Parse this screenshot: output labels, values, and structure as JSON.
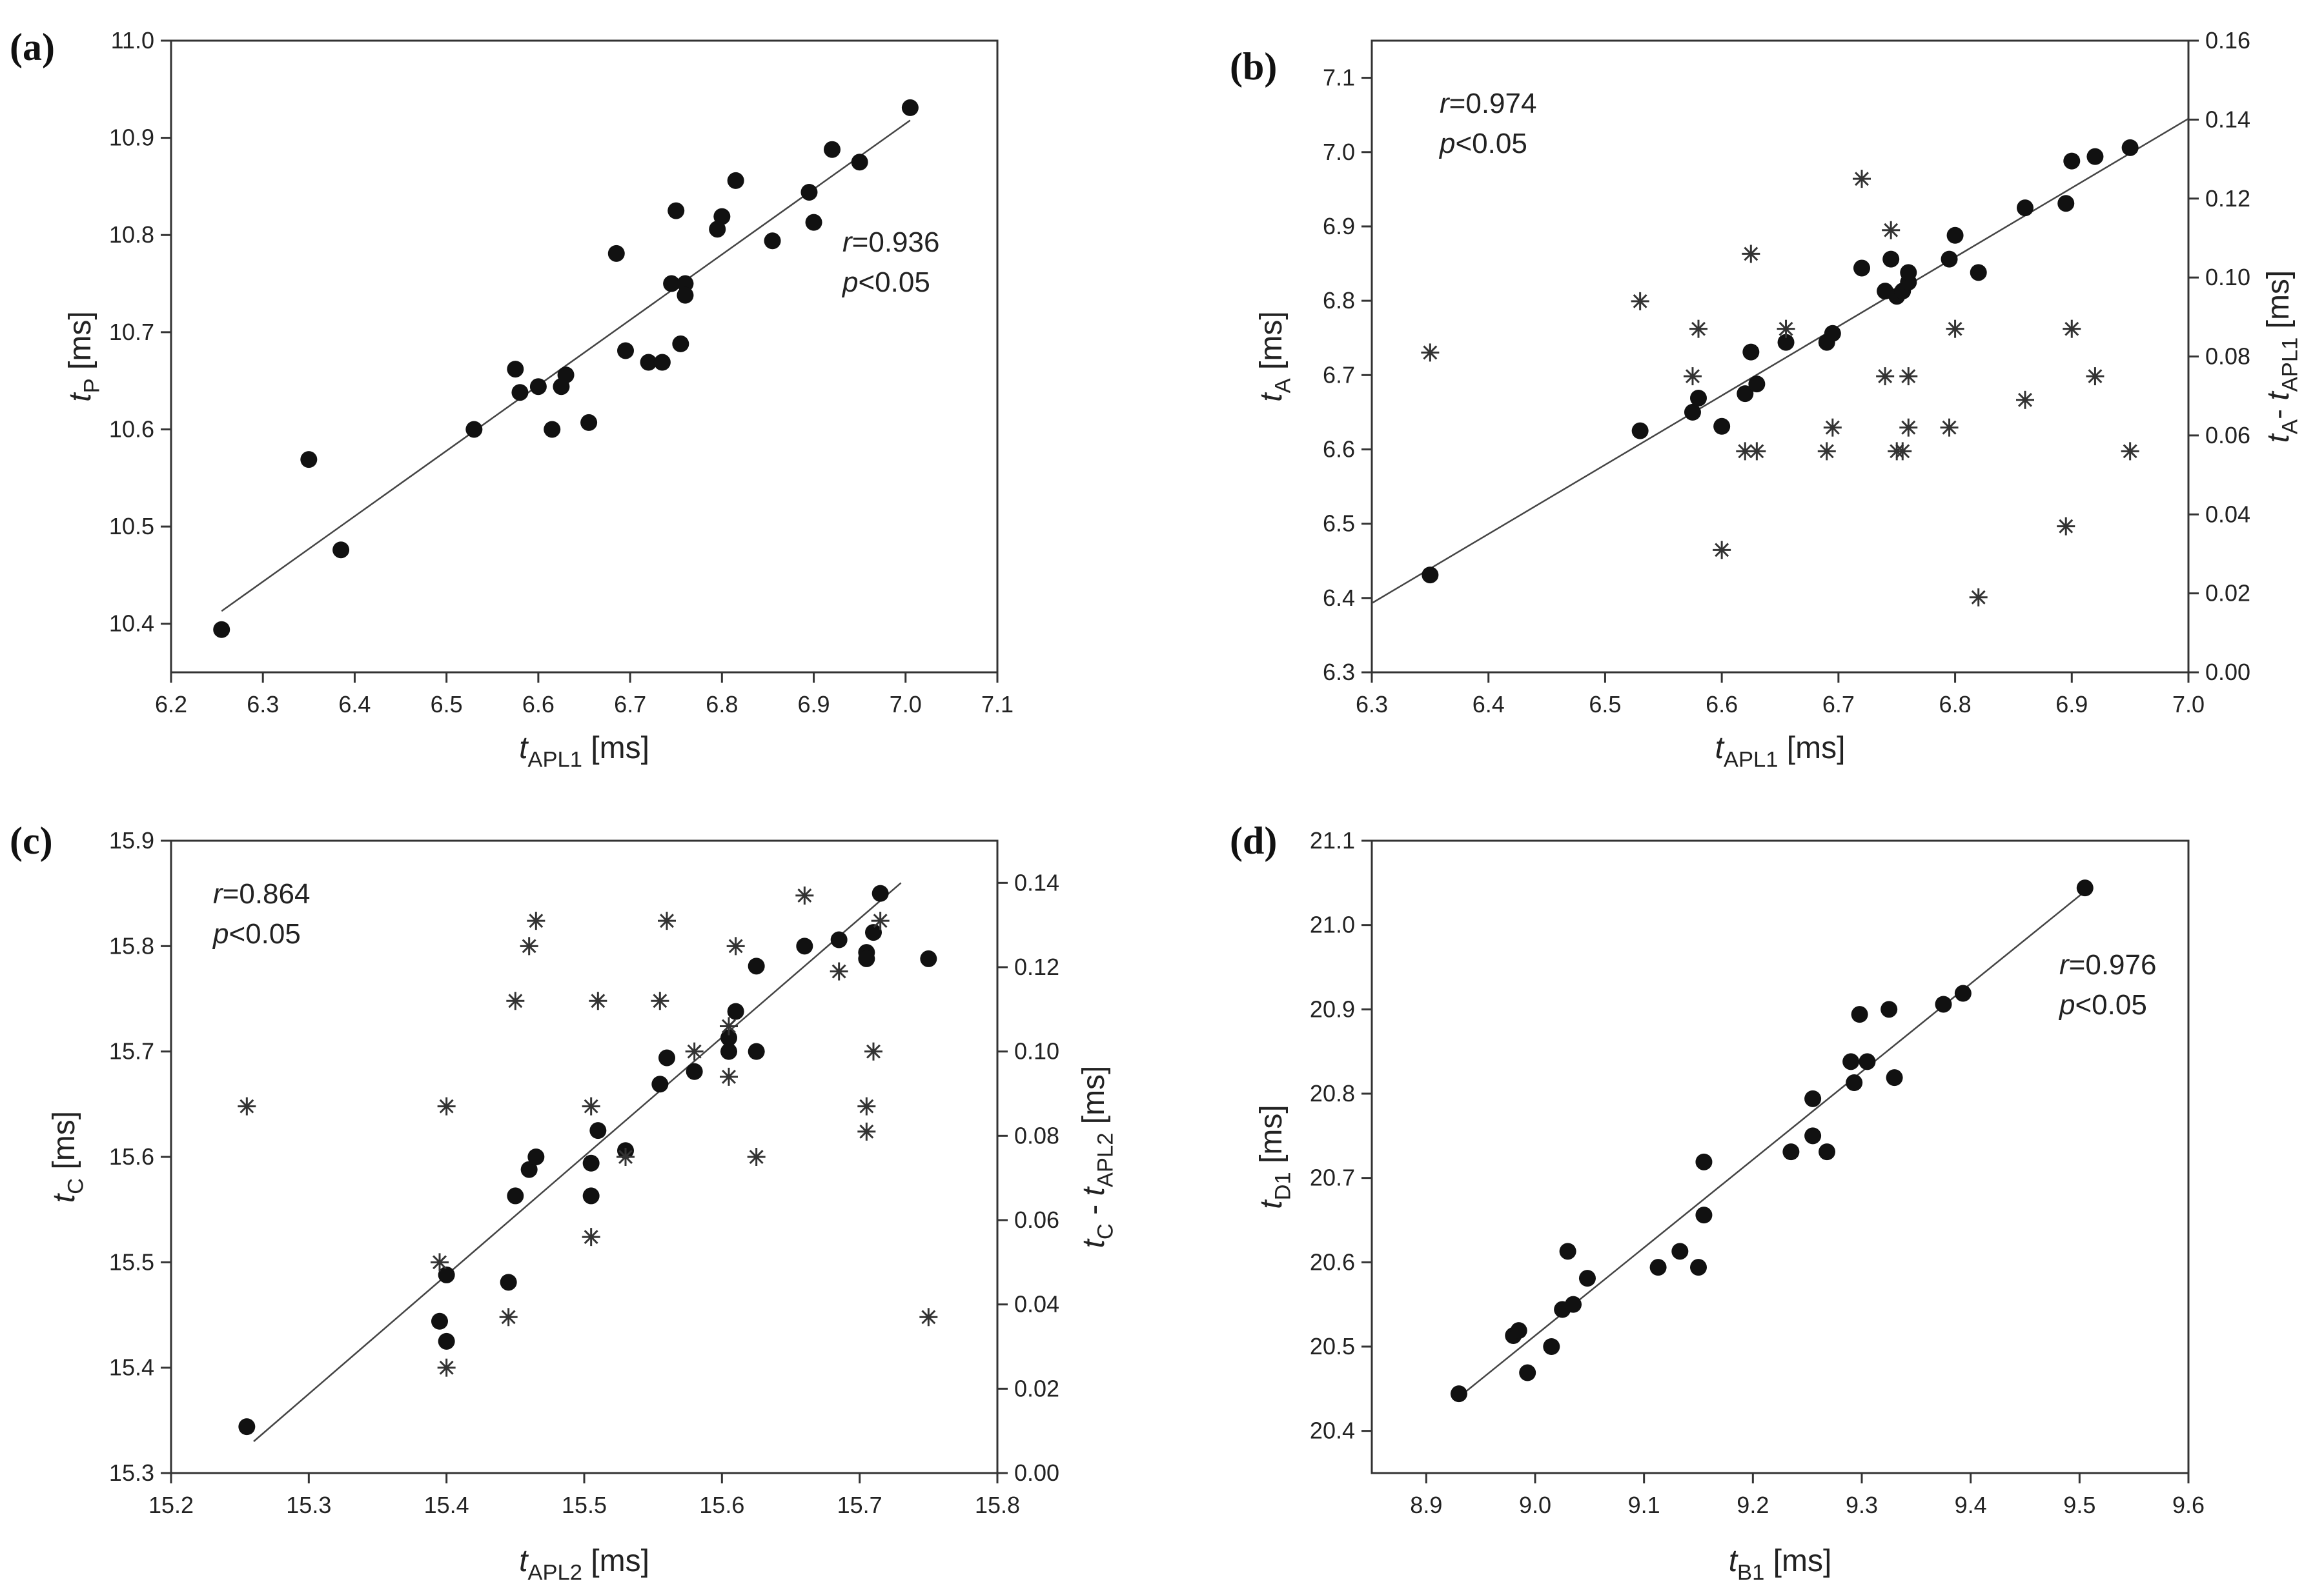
{
  "chart_data": [
    {
      "panel": "(a)",
      "type": "scatter",
      "xlabel": "t_APL1 [ms]",
      "ylabel": "t_P [ms]",
      "xlim": [
        6.2,
        7.1
      ],
      "ylim": [
        10.35,
        11.0
      ],
      "xticks": [
        "6.2",
        "6.3",
        "6.4",
        "6.5",
        "6.6",
        "6.7",
        "6.8",
        "6.9",
        "7.0",
        "7.1"
      ],
      "yticks": [
        "10.4",
        "10.5",
        "10.6",
        "10.7",
        "10.8",
        "10.9",
        "11.0"
      ],
      "annotation": [
        "r=0.936",
        "p<0.05"
      ],
      "annotation_pos": "right",
      "fit_line": {
        "x0": 6.255,
        "y0": 10.413,
        "x1": 7.005,
        "y1": 10.918
      },
      "series": [
        {
          "name": "points",
          "marker": "dot",
          "axis": "left",
          "points": [
            [
              6.255,
              10.394
            ],
            [
              6.35,
              10.569
            ],
            [
              6.385,
              10.476
            ],
            [
              6.53,
              10.6
            ],
            [
              6.575,
              10.662
            ],
            [
              6.58,
              10.638
            ],
            [
              6.6,
              10.644
            ],
            [
              6.615,
              10.6
            ],
            [
              6.625,
              10.644
            ],
            [
              6.63,
              10.656
            ],
            [
              6.655,
              10.607
            ],
            [
              6.685,
              10.781
            ],
            [
              6.695,
              10.681
            ],
            [
              6.72,
              10.669
            ],
            [
              6.735,
              10.669
            ],
            [
              6.745,
              10.75
            ],
            [
              6.75,
              10.825
            ],
            [
              6.755,
              10.688
            ],
            [
              6.76,
              10.75
            ],
            [
              6.76,
              10.738
            ],
            [
              6.795,
              10.806
            ],
            [
              6.8,
              10.819
            ],
            [
              6.815,
              10.856
            ],
            [
              6.855,
              10.794
            ],
            [
              6.895,
              10.844
            ],
            [
              6.9,
              10.813
            ],
            [
              6.92,
              10.888
            ],
            [
              6.95,
              10.875
            ],
            [
              7.005,
              10.931
            ]
          ]
        }
      ]
    },
    {
      "panel": "(b)",
      "type": "scatter",
      "xlabel": "t_APL1 [ms]",
      "ylabel": "t_A [ms]",
      "ylabel_right": "t_A- t_APL1 [ms]",
      "xlim": [
        6.3,
        7.0
      ],
      "ylim": [
        6.3,
        7.15
      ],
      "ylim_right": [
        0.0,
        0.16
      ],
      "xticks": [
        "6.3",
        "6.4",
        "6.5",
        "6.6",
        "6.7",
        "6.8",
        "6.9",
        "7.0"
      ],
      "yticks": [
        "6.3",
        "6.4",
        "6.5",
        "6.6",
        "6.7",
        "6.8",
        "6.9",
        "7.0",
        "7.1"
      ],
      "yticks_right": [
        "0.00",
        "0.02",
        "0.04",
        "0.06",
        "0.08",
        "0.10",
        "0.12",
        "0.14",
        "0.16"
      ],
      "annotation": [
        "r=0.974",
        "p<0.05"
      ],
      "annotation_pos": "left",
      "fit_line": {
        "x0": 6.3,
        "y0": 6.393,
        "x1": 7.0,
        "y1": 7.045
      },
      "series": [
        {
          "name": "t_A",
          "marker": "dot",
          "axis": "left",
          "points": [
            [
              6.35,
              6.431
            ],
            [
              6.53,
              6.625
            ],
            [
              6.575,
              6.65
            ],
            [
              6.58,
              6.669
            ],
            [
              6.6,
              6.631
            ],
            [
              6.62,
              6.675
            ],
            [
              6.625,
              6.731
            ],
            [
              6.63,
              6.688
            ],
            [
              6.655,
              6.744
            ],
            [
              6.69,
              6.744
            ],
            [
              6.695,
              6.756
            ],
            [
              6.72,
              6.844
            ],
            [
              6.74,
              6.813
            ],
            [
              6.745,
              6.856
            ],
            [
              6.75,
              6.806
            ],
            [
              6.755,
              6.813
            ],
            [
              6.76,
              6.825
            ],
            [
              6.76,
              6.838
            ],
            [
              6.795,
              6.856
            ],
            [
              6.8,
              6.888
            ],
            [
              6.82,
              6.838
            ],
            [
              6.86,
              6.925
            ],
            [
              6.895,
              6.931
            ],
            [
              6.9,
              6.988
            ],
            [
              6.92,
              6.994
            ],
            [
              6.95,
              7.006
            ]
          ]
        },
        {
          "name": "t_A - t_APL1",
          "marker": "star",
          "axis": "right",
          "points": [
            [
              6.35,
              0.081
            ],
            [
              6.53,
              0.094
            ],
            [
              6.575,
              0.075
            ],
            [
              6.58,
              0.087
            ],
            [
              6.6,
              0.031
            ],
            [
              6.62,
              0.056
            ],
            [
              6.625,
              0.106
            ],
            [
              6.63,
              0.056
            ],
            [
              6.655,
              0.087
            ],
            [
              6.69,
              0.056
            ],
            [
              6.695,
              0.062
            ],
            [
              6.72,
              0.125
            ],
            [
              6.74,
              0.075
            ],
            [
              6.745,
              0.112
            ],
            [
              6.75,
              0.056
            ],
            [
              6.755,
              0.056
            ],
            [
              6.76,
              0.075
            ],
            [
              6.76,
              0.062
            ],
            [
              6.795,
              0.062
            ],
            [
              6.8,
              0.087
            ],
            [
              6.82,
              0.019
            ],
            [
              6.86,
              0.069
            ],
            [
              6.895,
              0.037
            ],
            [
              6.9,
              0.087
            ],
            [
              6.92,
              0.075
            ],
            [
              6.95,
              0.056
            ]
          ]
        }
      ]
    },
    {
      "panel": "(c)",
      "type": "scatter",
      "xlabel": "t_APL2 [ms]",
      "ylabel": "t_C [ms]",
      "ylabel_right": "t_C - t_APL2 [ms]",
      "xlim": [
        15.2,
        15.8
      ],
      "ylim": [
        15.3,
        15.9
      ],
      "ylim_right": [
        0.0,
        0.15
      ],
      "xticks": [
        "15.2",
        "15.3",
        "15.4",
        "15.5",
        "15.6",
        "15.7",
        "15.8"
      ],
      "yticks": [
        "15.3",
        "15.4",
        "15.5",
        "15.6",
        "15.7",
        "15.8",
        "15.9"
      ],
      "yticks_right": [
        "0.00",
        "0.02",
        "0.04",
        "0.06",
        "0.08",
        "0.10",
        "0.12",
        "0.14"
      ],
      "annotation": [
        "r=0.864",
        "p<0.05"
      ],
      "annotation_pos": "left",
      "fit_line": {
        "x0": 15.26,
        "y0": 15.33,
        "x1": 15.73,
        "y1": 15.86
      },
      "series": [
        {
          "name": "t_C",
          "marker": "dot",
          "axis": "left",
          "points": [
            [
              15.255,
              15.344
            ],
            [
              15.395,
              15.444
            ],
            [
              15.4,
              15.425
            ],
            [
              15.4,
              15.488
            ],
            [
              15.445,
              15.481
            ],
            [
              15.45,
              15.563
            ],
            [
              15.46,
              15.588
            ],
            [
              15.465,
              15.6
            ],
            [
              15.505,
              15.594
            ],
            [
              15.505,
              15.563
            ],
            [
              15.51,
              15.625
            ],
            [
              15.53,
              15.606
            ],
            [
              15.555,
              15.669
            ],
            [
              15.56,
              15.694
            ],
            [
              15.58,
              15.681
            ],
            [
              15.605,
              15.713
            ],
            [
              15.605,
              15.7
            ],
            [
              15.61,
              15.738
            ],
            [
              15.625,
              15.781
            ],
            [
              15.625,
              15.7
            ],
            [
              15.66,
              15.8
            ],
            [
              15.685,
              15.806
            ],
            [
              15.705,
              15.794
            ],
            [
              15.705,
              15.788
            ],
            [
              15.71,
              15.813
            ],
            [
              15.715,
              15.85
            ],
            [
              15.75,
              15.788
            ]
          ]
        },
        {
          "name": "t_C - t_APL2",
          "marker": "star",
          "axis": "right",
          "points": [
            [
              15.255,
              0.087
            ],
            [
              15.395,
              0.05
            ],
            [
              15.4,
              0.025
            ],
            [
              15.4,
              0.087
            ],
            [
              15.445,
              0.037
            ],
            [
              15.45,
              0.112
            ],
            [
              15.46,
              0.125
            ],
            [
              15.465,
              0.131
            ],
            [
              15.505,
              0.087
            ],
            [
              15.505,
              0.056
            ],
            [
              15.51,
              0.112
            ],
            [
              15.53,
              0.075
            ],
            [
              15.555,
              0.112
            ],
            [
              15.56,
              0.131
            ],
            [
              15.58,
              0.1
            ],
            [
              15.605,
              0.106
            ],
            [
              15.605,
              0.094
            ],
            [
              15.61,
              0.125
            ],
            [
              15.625,
              0.075
            ],
            [
              15.66,
              0.137
            ],
            [
              15.685,
              0.119
            ],
            [
              15.705,
              0.087
            ],
            [
              15.705,
              0.081
            ],
            [
              15.71,
              0.1
            ],
            [
              15.715,
              0.131
            ],
            [
              15.75,
              0.037
            ]
          ]
        }
      ]
    },
    {
      "panel": "(d)",
      "type": "scatter",
      "xlabel": "t_B1 [ms]",
      "ylabel": "t_D1 [ms]",
      "xlim": [
        8.85,
        9.6
      ],
      "ylim": [
        20.35,
        21.1
      ],
      "xticks": [
        "8.9",
        "9.0",
        "9.1",
        "9.2",
        "9.3",
        "9.4",
        "9.5",
        "9.6"
      ],
      "yticks": [
        "20.4",
        "20.5",
        "20.6",
        "20.7",
        "20.8",
        "20.9",
        "21.0",
        "21.1"
      ],
      "annotation": [
        "r=0.976",
        "p<0.05"
      ],
      "annotation_pos": "right",
      "fit_line": {
        "x0": 8.93,
        "y0": 20.44,
        "x1": 9.505,
        "y1": 21.04
      },
      "series": [
        {
          "name": "points",
          "marker": "dot",
          "axis": "left",
          "points": [
            [
              8.93,
              20.444
            ],
            [
              8.98,
              20.513
            ],
            [
              8.985,
              20.519
            ],
            [
              8.993,
              20.469
            ],
            [
              9.015,
              20.5
            ],
            [
              9.025,
              20.544
            ],
            [
              9.03,
              20.613
            ],
            [
              9.035,
              20.55
            ],
            [
              9.048,
              20.581
            ],
            [
              9.113,
              20.594
            ],
            [
              9.133,
              20.613
            ],
            [
              9.15,
              20.594
            ],
            [
              9.155,
              20.719
            ],
            [
              9.155,
              20.656
            ],
            [
              9.235,
              20.731
            ],
            [
              9.255,
              20.794
            ],
            [
              9.255,
              20.75
            ],
            [
              9.268,
              20.731
            ],
            [
              9.29,
              20.838
            ],
            [
              9.293,
              20.813
            ],
            [
              9.298,
              20.894
            ],
            [
              9.305,
              20.838
            ],
            [
              9.325,
              20.9
            ],
            [
              9.33,
              20.819
            ],
            [
              9.375,
              20.906
            ],
            [
              9.393,
              20.919
            ],
            [
              9.505,
              21.044
            ]
          ]
        }
      ]
    }
  ]
}
